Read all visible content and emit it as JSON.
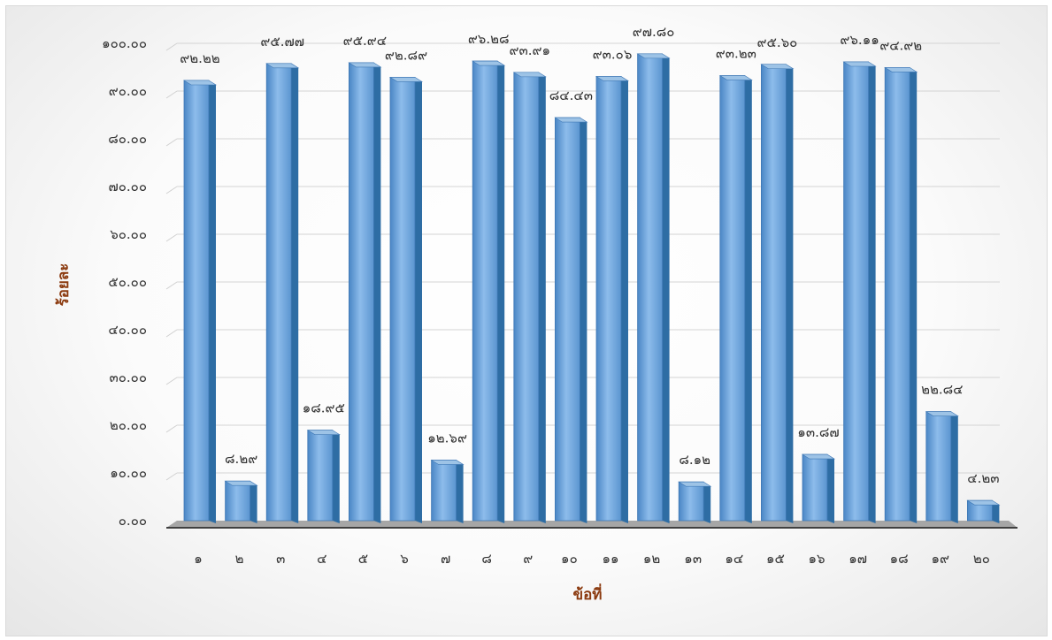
{
  "chart_data": {
    "type": "bar",
    "title": "",
    "xlabel": "ข้อที่",
    "ylabel": "ร้อยละ",
    "ylim": [
      0,
      100
    ],
    "yticks": [
      "๐.๐๐",
      "๑๐.๐๐",
      "๒๐.๐๐",
      "๓๐.๐๐",
      "๔๐.๐๐",
      "๕๐.๐๐",
      "๖๐.๐๐",
      "๗๐.๐๐",
      "๘๐.๐๐",
      "๙๐.๐๐",
      "๑๐๐.๐๐"
    ],
    "categories": [
      "๑",
      "๒",
      "๓",
      "๔",
      "๕",
      "๖",
      "๗",
      "๘",
      "๙",
      "๑๐",
      "๑๑",
      "๑๒",
      "๑๓",
      "๑๔",
      "๑๕",
      "๑๖",
      "๑๗",
      "๑๘",
      "๑๙",
      "๒๐"
    ],
    "values": [
      92.22,
      8.29,
      95.77,
      18.95,
      95.94,
      92.89,
      12.69,
      96.28,
      93.91,
      84.43,
      93.06,
      97.8,
      8.12,
      93.23,
      95.6,
      13.87,
      96.11,
      94.92,
      22.84,
      4.23
    ],
    "data_labels": [
      "๙๒.๒๒",
      "๘.๒๙",
      "๙๕.๗๗",
      "๑๘.๙๕",
      "๙๕.๙๔",
      "๙๒.๘๙",
      "๑๒.๖๙",
      "๙๖.๒๘",
      "๙๓.๙๑",
      "๘๔.๔๓",
      "๙๓.๐๖",
      "๙๗.๘๐",
      "๘.๑๒",
      "๙๓.๒๓",
      "๙๕.๖๐",
      "๑๓.๘๗",
      "๙๖.๑๑",
      "๙๔.๙๒",
      "๒๒.๘๔",
      "๔.๒๓"
    ],
    "grid": true,
    "legend": "none",
    "colors": {
      "bar": "#5B9BD5",
      "bar_side": "#2E6DA4",
      "bar_top": "#9DC3E6",
      "title": "#8B3A0F"
    }
  }
}
